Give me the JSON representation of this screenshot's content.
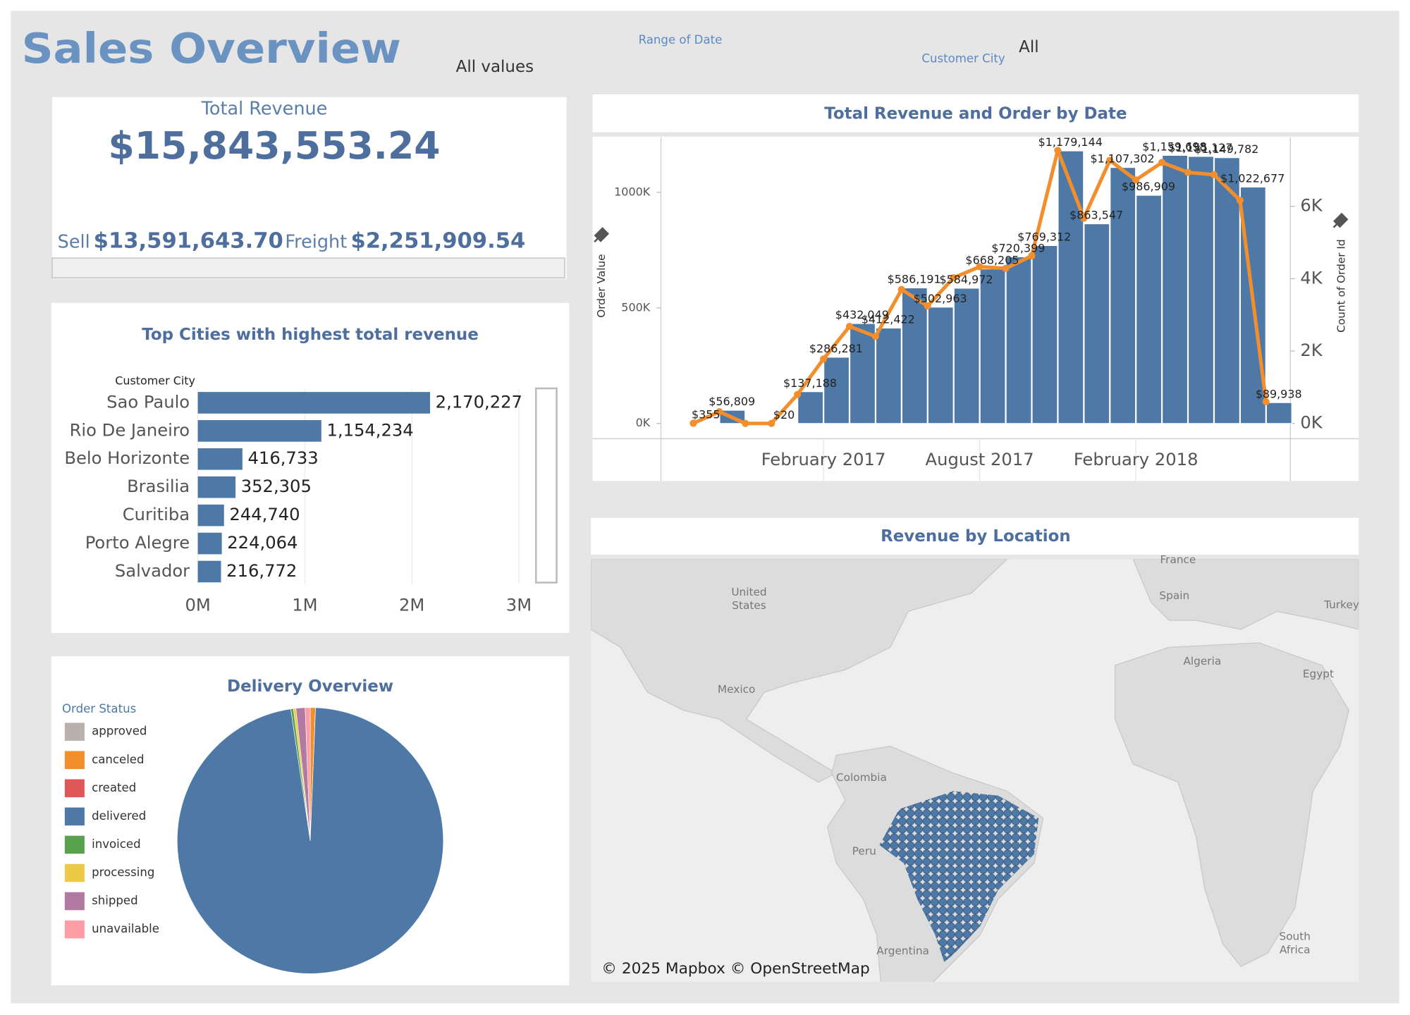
{
  "header": {
    "title": "Sales Overview",
    "filters": [
      {
        "label": "Range of Date",
        "value": "All values"
      },
      {
        "label": "Customer City",
        "value": "All"
      }
    ]
  },
  "kpi": {
    "title": "Total Revenue",
    "value": "$15,843,553.24",
    "items": [
      {
        "label": "Sell",
        "value": "$13,591,643.70"
      },
      {
        "label": "Freight",
        "value": "$2,251,909.54"
      }
    ]
  },
  "chart_data": [
    {
      "type": "hbar",
      "title": "Top Cities with highest total revenue",
      "y_label": "Customer City",
      "categories": [
        "Sao Paulo",
        "Rio De Janeiro",
        "Belo Horizonte",
        "Brasilia",
        "Curitiba",
        "Porto Alegre",
        "Salvador"
      ],
      "values": [
        2170227,
        1154234,
        416733,
        352305,
        244740,
        224064,
        216772
      ],
      "value_labels": [
        "2,170,227",
        "1,154,234",
        "416,733",
        "352,305",
        "244,740",
        "224,064",
        "216,772"
      ],
      "color": "#4e79a7",
      "xlim": [
        0,
        3000000
      ],
      "xticks": [
        {
          "value": 0,
          "label": "0M"
        },
        {
          "value": 1000000,
          "label": "1M"
        },
        {
          "value": 2000000,
          "label": "2M"
        },
        {
          "value": 3000000,
          "label": "3M"
        }
      ],
      "grid": true
    },
    {
      "type": "combo",
      "title": "Total Revenue and Order by Date",
      "categories": [
        null,
        null,
        null,
        null,
        null,
        "February 2017",
        null,
        null,
        null,
        null,
        null,
        "August 2017",
        null,
        null,
        null,
        null,
        null,
        "February 2018",
        null,
        null,
        null,
        null,
        null
      ],
      "series": [
        {
          "name": "Order Value",
          "type": "bar",
          "color": "#4e79a7",
          "values": [
            355,
            56809,
            null,
            20,
            137188,
            286281,
            432049,
            412422,
            586191,
            502963,
            584972,
            668205,
            720399,
            769312,
            1179144,
            863547,
            1107302,
            986909,
            1159698,
            1155127,
            1149782,
            1022677,
            89938
          ],
          "value_labels": [
            "$355",
            "$56,809",
            null,
            "$20",
            "$137,188",
            "$286,281",
            "$432,049",
            "$412,422",
            "$586,191",
            "$502,963",
            "$584,972",
            "$668,205",
            "$720,399",
            "$769,312",
            "$1,179,144",
            "$863,547",
            "$1,107,302",
            "$986,909",
            "$1,159,698",
            "$1,155,127",
            "$1,149,782",
            "$1,022,677",
            "$89,938"
          ]
        },
        {
          "name": "Count of Order Id",
          "type": "line",
          "axis": "y2",
          "color": "#f28e2b",
          "values": [
            4,
            324,
            0,
            1,
            800,
            1780,
            2682,
            2404,
            3700,
            3245,
            4026,
            4331,
            4285,
            4631,
            7544,
            5673,
            7269,
            6728,
            7211,
            6939,
            6873,
            6167,
            600
          ]
        }
      ],
      "ylim": [
        0,
        1237000
      ],
      "yticks": [
        {
          "value": 0,
          "label": "0K"
        },
        {
          "value": 500000,
          "label": "500K"
        },
        {
          "value": 1000000,
          "label": "1000K"
        }
      ],
      "y2lim": [
        0,
        7900
      ],
      "y2ticks": [
        {
          "value": 0,
          "label": "0K"
        },
        {
          "value": 2000,
          "label": "2K"
        },
        {
          "value": 4000,
          "label": "4K"
        },
        {
          "value": 6000,
          "label": "6K"
        }
      ]
    },
    {
      "type": "pie",
      "title": "Delivery Overview",
      "legend_title": "Order Status",
      "categories": [
        "approved",
        "canceled",
        "created",
        "delivered",
        "invoiced",
        "processing",
        "shipped",
        "unavailable"
      ],
      "values": [
        0.002,
        0.63,
        0.005,
        97.02,
        0.32,
        0.3,
        1.11,
        0.61
      ],
      "colors": [
        "#bab0ac",
        "#f28e2b",
        "#e15759",
        "#4e79a7",
        "#59a14f",
        "#edc948",
        "#b07aa1",
        "#ff9da7"
      ]
    }
  ],
  "map": {
    "title": "Revenue by Location",
    "labels": [
      "United",
      "States",
      "Mexico",
      "Colombia",
      "Peru",
      "Argentina",
      "France",
      "Spain",
      "Turkey",
      "Algeria",
      "Egypt",
      "South",
      "Africa"
    ],
    "attribution": "© 2025 Mapbox © OpenStreetMap"
  }
}
